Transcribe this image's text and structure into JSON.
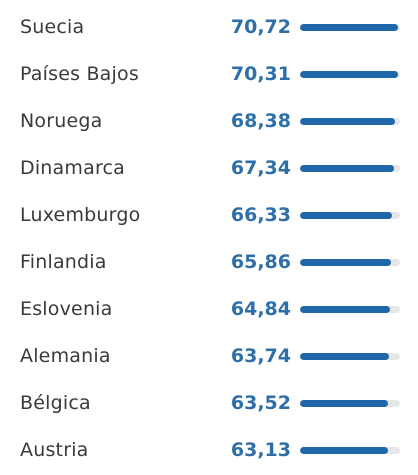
{
  "chart_data": {
    "type": "bar",
    "orientation": "horizontal",
    "categories": [
      "Suecia",
      "Países Bajos",
      "Noruega",
      "Dinamarca",
      "Luxemburgo",
      "Finlandia",
      "Eslovenia",
      "Alemania",
      "Bélgica",
      "Austria"
    ],
    "values": [
      70.72,
      70.31,
      68.38,
      67.34,
      66.33,
      65.86,
      64.84,
      63.74,
      63.52,
      63.13
    ],
    "value_labels": [
      "70,72",
      "70,31",
      "68,38",
      "67,34",
      "66,33",
      "65,86",
      "64,84",
      "63,74",
      "63,52",
      "63,13"
    ],
    "title": "",
    "xlabel": "",
    "ylabel": "",
    "xlim": [
      0,
      72
    ],
    "grid": false,
    "colors": {
      "bar": "#1f67a8",
      "track": "#e6e6e6",
      "value_text": "#2f6fa8",
      "label_text": "#3a3a3a"
    }
  }
}
